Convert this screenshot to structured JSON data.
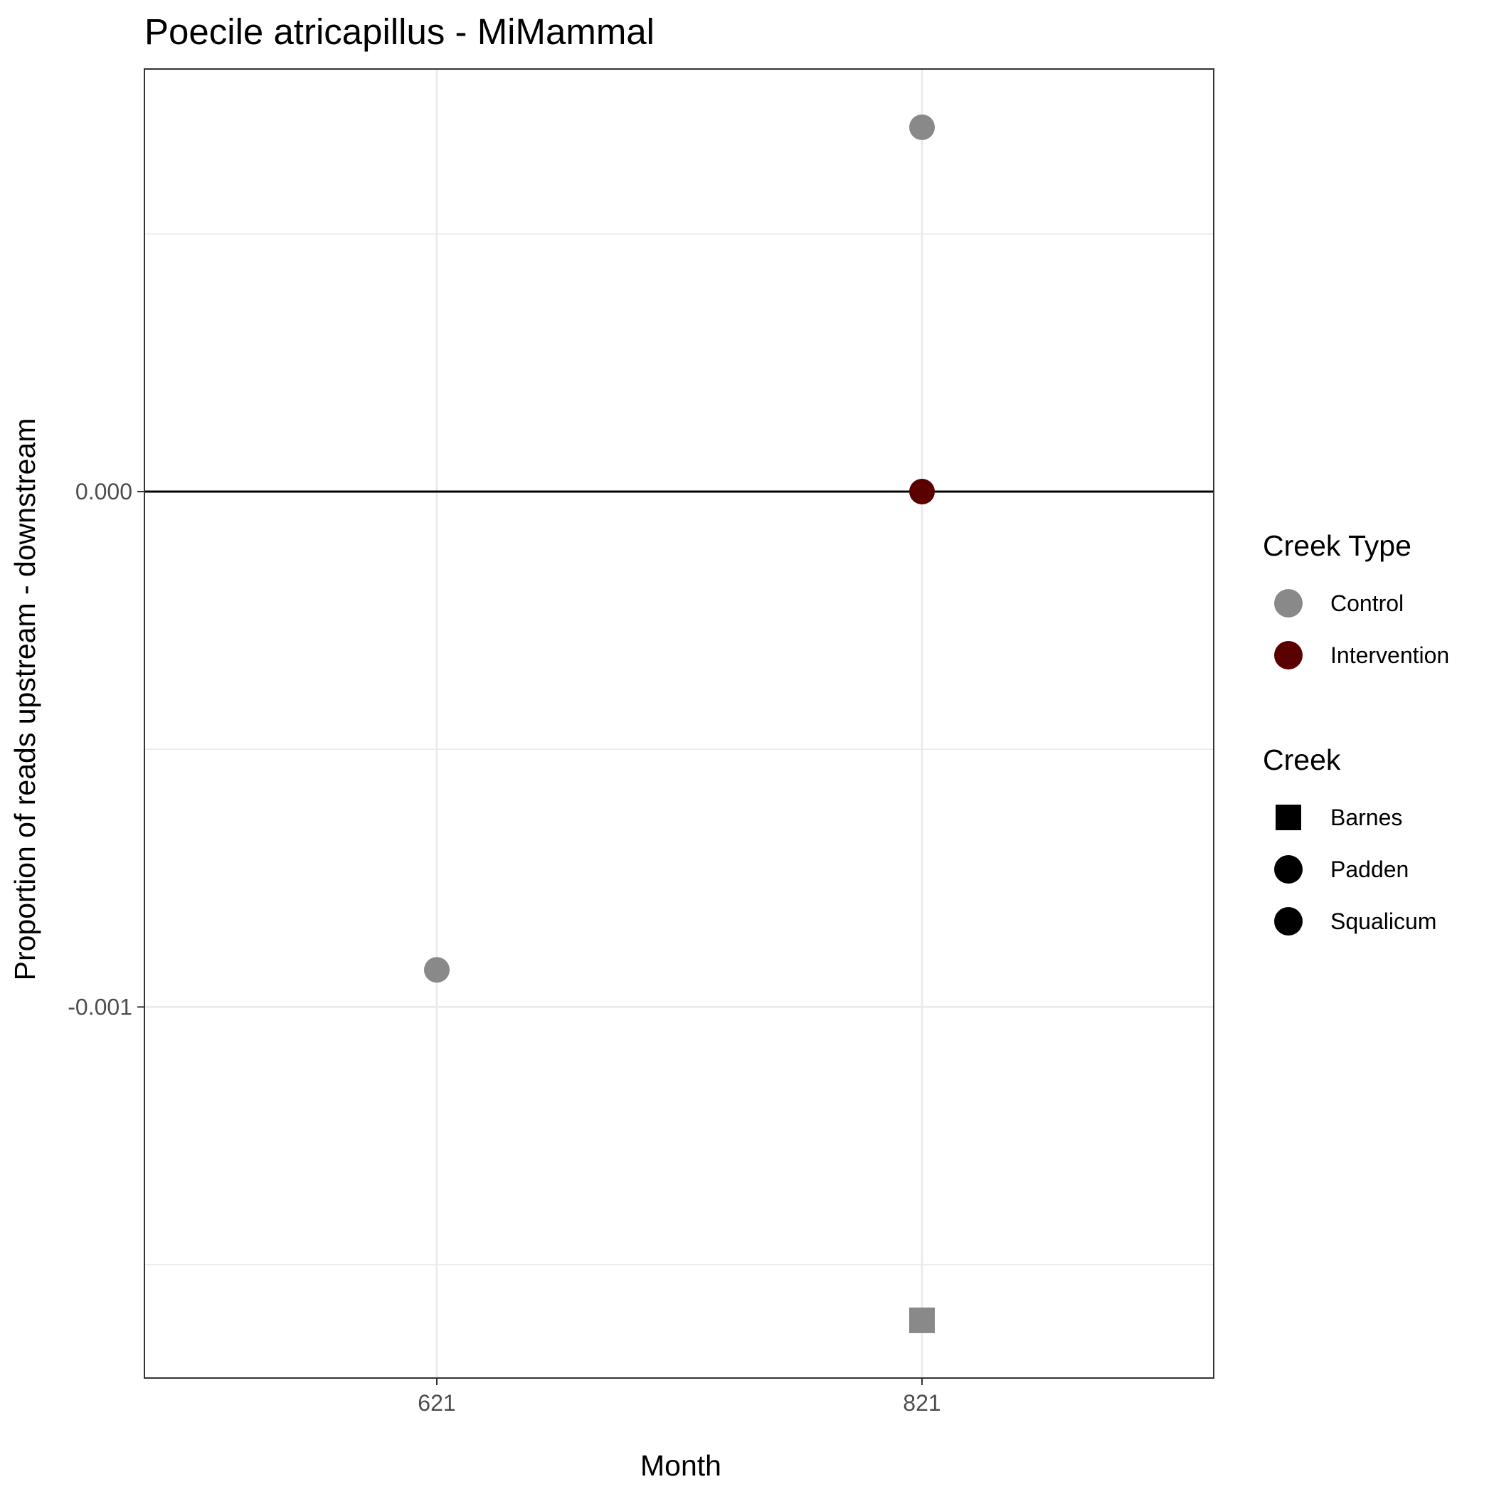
{
  "chart_data": {
    "type": "scatter",
    "title": "Poecile atricapillus - MiMammal",
    "xlabel": "Month",
    "ylabel": "Proportion of reads upstream - downstream",
    "x_categories": [
      "621",
      "821"
    ],
    "y_ticks": [
      {
        "value": 0.0,
        "label": "0.000"
      },
      {
        "value": -0.001,
        "label": "-0.001"
      }
    ],
    "ylim": [
      -0.00172,
      0.00082
    ],
    "grid": true,
    "reference_line_y": 0,
    "points": [
      {
        "x": "621",
        "y": -0.000928,
        "creek_type": "Control",
        "creek": "Padden"
      },
      {
        "x": "821",
        "y": 0.000707,
        "creek_type": "Control",
        "creek": "Padden"
      },
      {
        "x": "821",
        "y": 0.0,
        "creek_type": "Intervention",
        "creek": "Squalicum"
      },
      {
        "x": "821",
        "y": -0.001608,
        "creek_type": "Control",
        "creek": "Barnes"
      }
    ],
    "legend_placement": "right",
    "legends": [
      {
        "title": "Creek Type",
        "entries": [
          {
            "label": "Control",
            "color": "#898989",
            "shape": "circle"
          },
          {
            "label": "Intervention",
            "color": "#5a0000",
            "shape": "circle"
          }
        ]
      },
      {
        "title": "Creek",
        "entries": [
          {
            "label": "Barnes",
            "color": "#000000",
            "shape": "square"
          },
          {
            "label": "Padden",
            "color": "#000000",
            "shape": "circle"
          },
          {
            "label": "Squalicum",
            "color": "#000000",
            "shape": "circle"
          }
        ]
      }
    ],
    "colors": {
      "Control": "#898989",
      "Intervention": "#5a0000"
    },
    "shapes": {
      "Barnes": "square",
      "Padden": "circle",
      "Squalicum": "circle"
    }
  }
}
